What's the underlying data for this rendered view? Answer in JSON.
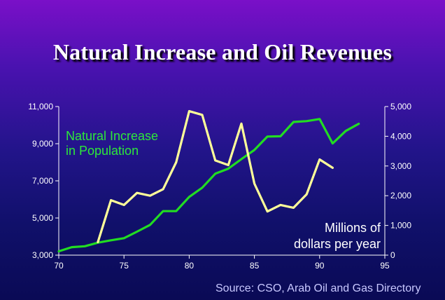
{
  "chart_data": {
    "type": "line",
    "title": "Natural Increase and Oil Revenues",
    "source": "Source: CSO, Arab Oil and Gas Directory",
    "x_ticks": [
      "70",
      "75",
      "80",
      "85",
      "90",
      "95"
    ],
    "xlim": [
      70,
      95
    ],
    "y_left_ticks": [
      "3,000",
      "5,000",
      "7,000",
      "9,000",
      "11,000"
    ],
    "y_left_lim": [
      3000,
      11000
    ],
    "y_right_ticks": [
      "0",
      "1,000",
      "2,000",
      "3,000",
      "4,000",
      "5,000"
    ],
    "y_right_lim": [
      0,
      5000
    ],
    "grid": false,
    "annotations": {
      "population_label": [
        "Natural Increase",
        "in Population"
      ],
      "revenue_label": [
        "Millions of",
        "dollars per year"
      ]
    },
    "series": [
      {
        "axis": "right",
        "color": "#22dd22",
        "x": [
          70,
          71,
          72,
          73,
          74,
          75,
          76,
          77,
          78,
          79,
          80,
          81,
          82,
          83,
          84,
          85,
          86,
          87,
          88,
          89,
          90,
          91,
          92,
          93
        ],
        "values": [
          130,
          270,
          300,
          420,
          500,
          570,
          790,
          1020,
          1480,
          1480,
          1960,
          2270,
          2740,
          2910,
          3230,
          3540,
          3990,
          4000,
          4480,
          4510,
          4580,
          3760,
          4180,
          4420
        ]
      },
      {
        "axis": "left",
        "color": "#ffff99",
        "x": [
          73,
          74,
          75,
          76,
          77,
          78,
          79,
          80,
          81,
          82,
          83,
          84,
          85,
          86,
          87,
          88,
          89,
          90,
          91
        ],
        "values": [
          3700,
          5960,
          5700,
          6350,
          6200,
          6550,
          8000,
          10750,
          10550,
          8100,
          7850,
          10080,
          6850,
          5350,
          5700,
          5550,
          6270,
          8150,
          7700
        ]
      }
    ]
  }
}
